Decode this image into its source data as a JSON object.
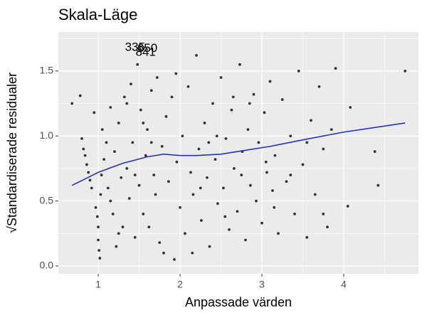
{
  "chart_data": {
    "type": "scatter",
    "title": "Skala-Läge",
    "x_label": "Anpassade värden",
    "y_label": "√Standardiserade residualer",
    "xlim": [
      0.513,
      4.913
    ],
    "ylim": [
      -0.06,
      1.8
    ],
    "xticks": [
      1,
      2,
      3,
      4
    ],
    "yticks": [
      {
        "value": 0,
        "label": "0.0"
      },
      0.5,
      {
        "value": 1,
        "label": "1.0"
      },
      1.5
    ],
    "x_minor_ticks": [
      1.5,
      2.5,
      3.5,
      4.5
    ],
    "y_minor_ticks": [
      0.25,
      0.75,
      1.25,
      1.75
    ],
    "grid": true,
    "background": "#ebebeb",
    "points": {
      "color": "#333333",
      "x": [
        0.68,
        0.78,
        0.8,
        0.82,
        0.84,
        0.86,
        0.88,
        0.9,
        0.92,
        0.95,
        0.97,
        0.99,
        1.0,
        1.0,
        1.01,
        1.02,
        1.03,
        1.04,
        1.05,
        1.07,
        1.1,
        1.12,
        1.15,
        1.18,
        1.2,
        1.22,
        1.25,
        1.28,
        1.3,
        1.32,
        1.35,
        1.38,
        1.4,
        1.42,
        1.45,
        1.48,
        1.5,
        1.52,
        1.55,
        1.58,
        1.6,
        1.62,
        1.65,
        1.68,
        1.7,
        1.72,
        1.75,
        1.78,
        1.8,
        1.83,
        1.86,
        1.9,
        1.93,
        1.96,
        2.0,
        2.03,
        2.06,
        2.1,
        2.13,
        2.16,
        2.2,
        2.23,
        2.26,
        2.3,
        2.33,
        2.36,
        2.4,
        2.43,
        2.46,
        2.5,
        2.53,
        2.56,
        2.6,
        2.63,
        2.66,
        2.7,
        2.73,
        2.76,
        2.8,
        2.83,
        2.86,
        2.9,
        2.93,
        2.96,
        3.0,
        3.03,
        3.06,
        3.1,
        3.13,
        3.16,
        3.2,
        3.25,
        3.3,
        3.35,
        3.4,
        3.45,
        3.5,
        3.55,
        3.6,
        3.65,
        3.7,
        3.75,
        3.8,
        3.85,
        3.9,
        4.05,
        4.08,
        4.38,
        4.42,
        4.75,
        1.95,
        2.15,
        2.45,
        2.55,
        2.85,
        3.05,
        1.65,
        1.55,
        1.35,
        1.15,
        1.25,
        1.45,
        2.25,
        2.65,
        3.15,
        3.35,
        3.55,
        3.75,
        2.35,
        2.75
      ],
      "y": [
        1.25,
        1.31,
        0.98,
        0.9,
        0.85,
        0.78,
        0.72,
        0.66,
        0.6,
        1.18,
        0.45,
        0.38,
        0.3,
        0.2,
        0.12,
        0.06,
        0.55,
        0.7,
        1.05,
        0.82,
        0.95,
        0.6,
        1.22,
        0.4,
        0.88,
        0.15,
        1.1,
        0.68,
        0.3,
        1.3,
        0.75,
        0.52,
        1.4,
        0.95,
        0.22,
        1.55,
        0.62,
        1.2,
        0.4,
        0.85,
        1.05,
        0.3,
        1.35,
        0.7,
        0.55,
        1.45,
        0.18,
        0.92,
        0.1,
        1.15,
        0.65,
        1.3,
        0.05,
        0.8,
        0.45,
        1.0,
        0.25,
        1.38,
        0.72,
        0.55,
        1.62,
        0.9,
        0.35,
        1.1,
        0.68,
        0.15,
        1.25,
        0.82,
        0.48,
        1.45,
        0.6,
        0.98,
        0.28,
        1.2,
        0.75,
        0.42,
        1.55,
        0.88,
        0.2,
        1.05,
        0.62,
        1.32,
        0.5,
        0.95,
        0.33,
        1.18,
        0.72,
        1.42,
        0.58,
        0.85,
        0.25,
        1.28,
        0.65,
        1.0,
        0.4,
        1.5,
        0.78,
        0.22,
        1.12,
        0.55,
        1.38,
        0.9,
        0.3,
        1.05,
        1.52,
        0.46,
        1.22,
        0.88,
        0.62,
        1.5,
        1.48,
        0.1,
        1.0,
        0.38,
        1.25,
        0.8,
        0.95,
        1.1,
        1.25,
        0.5,
        0.25,
        0.7,
        0.6,
        1.3,
        0.45,
        0.7,
        0.95,
        0.4,
        0.95,
        0.7
      ]
    },
    "smooth": {
      "color": "#1f35c4",
      "x": [
        0.68,
        1.0,
        1.3,
        1.6,
        1.8,
        2.0,
        2.2,
        2.5,
        2.8,
        3.1,
        3.5,
        4.0,
        4.75
      ],
      "y": [
        0.62,
        0.72,
        0.79,
        0.84,
        0.86,
        0.85,
        0.85,
        0.86,
        0.89,
        0.92,
        0.97,
        1.03,
        1.1
      ]
    },
    "labels": [
      {
        "text": "335",
        "x": 1.45,
        "y": 1.68
      },
      {
        "text": "650",
        "x": 1.6,
        "y": 1.67
      },
      {
        "text": "841",
        "x": 1.58,
        "y": 1.64
      }
    ]
  }
}
